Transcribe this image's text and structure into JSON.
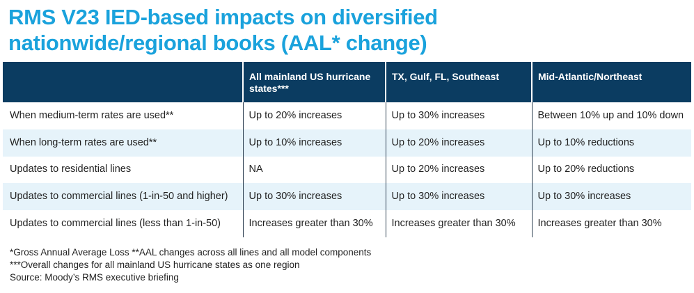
{
  "title": {
    "line1": "RMS V23 IED-based impacts on diversified",
    "line2": "nationwide/regional books (AAL* change)"
  },
  "chart_data": {
    "type": "table",
    "columns": [
      "",
      "All mainland US hurricane states***",
      "TX, Gulf, FL, Southeast",
      "Mid-Atlantic/Northeast"
    ],
    "rows": [
      [
        "When medium-term rates are used**",
        "Up to 20% increases",
        "Up to 30% increases",
        "Between 10% up and 10% down"
      ],
      [
        "When long-term rates are used**",
        "Up to 10% increases",
        "Up to 20% increases",
        "Up to 10% reductions"
      ],
      [
        "Updates to residential lines",
        "NA",
        "Up to 20% increases",
        "Up to 20% reductions"
      ],
      [
        "Updates to commercial lines (1-in-50 and higher)",
        "Up to 30% increases",
        "Up to 30% increases",
        "Up to 30% increases"
      ],
      [
        "Updates to commercial lines (less than 1-in-50)",
        "Increases greater than 30%",
        "Increases greater than 30%",
        "Increases greater than 30%"
      ]
    ]
  },
  "footnotes": [
    "*Gross Annual Average Loss **AAL changes across all lines and all model components",
    "***Overall changes for all mainland US hurricane states as one region",
    "Source: Moody’s RMS executive briefing"
  ],
  "colors": {
    "title": "#1aa2dc",
    "header_bg": "#0b3c61",
    "row_alt_bg": "#e6f3fa"
  }
}
